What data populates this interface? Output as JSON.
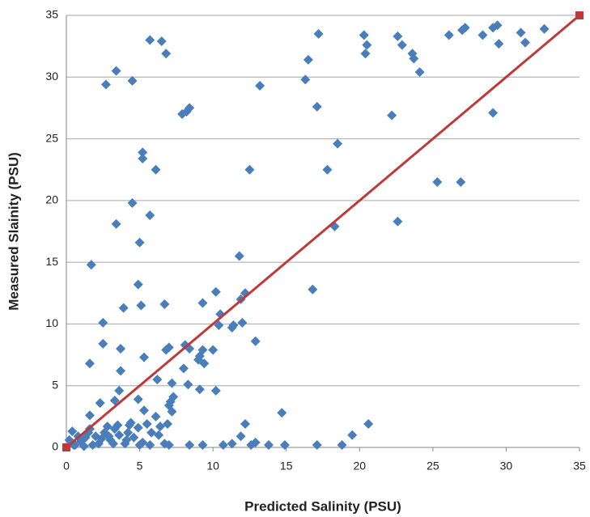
{
  "chart_data": {
    "type": "scatter",
    "xlabel": "Predicted Salinity (PSU)",
    "ylabel": "Measured Slainity (PSU)",
    "xlim": [
      0,
      35
    ],
    "ylim": [
      0,
      35
    ],
    "xticks": [
      0,
      5,
      10,
      15,
      20,
      25,
      30,
      35
    ],
    "yticks": [
      0,
      5,
      10,
      15,
      20,
      25,
      30,
      35
    ],
    "grid": "y",
    "series": [
      {
        "color": "#4a7ebb",
        "marker": "diamond",
        "x": [
          2.7,
          3.4,
          4.5,
          5.7,
          6.5,
          6.8,
          7.9,
          8.2,
          8.4,
          13.2,
          16.3,
          16.5,
          17.2,
          17.1,
          20.3,
          20.4,
          20.5,
          22.6,
          22.9,
          23.6,
          23.7,
          24.1,
          22.2,
          26.1,
          27.0,
          27.2,
          28.4,
          29.1,
          29.4,
          29.5,
          31.0,
          31.3,
          32.6,
          29.1,
          25.3,
          26.9,
          22.6,
          18.5,
          17.8,
          18.3,
          16.8,
          12.5,
          6.1,
          5.2,
          5.2,
          4.5,
          5.7,
          3.4,
          5.0,
          1.7,
          11.8,
          12.2,
          11.9,
          10.2,
          10.5,
          9.3,
          6.7,
          5.1,
          3.9,
          4.9,
          2.5,
          2.5,
          3.7,
          3.7,
          1.6,
          5.3,
          6.8,
          7.0,
          8.1,
          8.4,
          9.1,
          9.3,
          9.0,
          9.4,
          10.0,
          10.4,
          11.3,
          11.4,
          12.0,
          12.9,
          6.2,
          7.2,
          8.3,
          8.0,
          9.1,
          10.2,
          3.6,
          3.3,
          2.3,
          4.9,
          5.3,
          7.1,
          7.3,
          7.0,
          1.6,
          14.7,
          12.2,
          20.6,
          19.5,
          11.9,
          11.3,
          10.7,
          12.6,
          12.9,
          13.8,
          14.9,
          17.1,
          18.8,
          9.3,
          8.4,
          7.0,
          6.7,
          0.4,
          0.2,
          0.5,
          1.0,
          1.3,
          1.6,
          2.0,
          2.2,
          2.6,
          3.0,
          3.3,
          3.6,
          4.0,
          4.3,
          4.6,
          4.9,
          5.2,
          5.5,
          5.8,
          6.1,
          6.4,
          6.9,
          7.2,
          5.7,
          4.2,
          3.2,
          2.8,
          1.8,
          0.8,
          1.5,
          2.4,
          3.5,
          4.4,
          5.0,
          6.3,
          1.2,
          2.9,
          4.1,
          0.6
        ],
        "y": [
          29.4,
          30.5,
          29.7,
          33.0,
          32.9,
          31.9,
          27.0,
          27.2,
          27.5,
          29.3,
          29.8,
          31.4,
          33.5,
          27.6,
          33.4,
          31.9,
          32.6,
          33.3,
          32.6,
          31.9,
          31.5,
          30.4,
          26.9,
          33.4,
          33.8,
          34.0,
          33.4,
          34.0,
          34.2,
          32.7,
          33.6,
          32.8,
          33.9,
          27.1,
          21.5,
          21.5,
          18.3,
          24.6,
          22.5,
          17.9,
          12.8,
          22.5,
          22.5,
          23.9,
          23.4,
          19.8,
          18.8,
          18.1,
          16.6,
          14.8,
          15.5,
          12.5,
          12.0,
          12.6,
          10.8,
          11.7,
          11.6,
          11.5,
          11.3,
          13.2,
          10.1,
          8.4,
          8.0,
          6.2,
          6.8,
          7.3,
          7.9,
          8.1,
          8.3,
          8.0,
          7.4,
          7.9,
          7.1,
          6.8,
          7.9,
          9.9,
          9.7,
          9.9,
          10.1,
          8.6,
          5.5,
          5.2,
          5.1,
          6.4,
          4.7,
          4.6,
          4.6,
          3.8,
          3.6,
          3.9,
          3.0,
          3.7,
          4.1,
          3.4,
          2.6,
          2.8,
          1.9,
          1.9,
          1.0,
          0.9,
          0.3,
          0.2,
          0.2,
          0.4,
          0.2,
          0.2,
          0.2,
          0.2,
          0.2,
          0.2,
          0.2,
          0.3,
          1.3,
          0.6,
          0.2,
          0.5,
          0.8,
          1.5,
          0.9,
          0.3,
          1.2,
          0.6,
          1.5,
          1.0,
          0.3,
          1.8,
          0.8,
          1.6,
          0.4,
          1.9,
          1.2,
          2.5,
          1.7,
          1.9,
          2.9,
          0.2,
          1.2,
          0.3,
          1.7,
          0.2,
          0.9,
          1.2,
          0.7,
          1.8,
          2.0,
          0.2,
          1.0,
          0.1,
          0.9,
          0.6,
          0.2
        ]
      },
      {
        "color": "#be3a3a",
        "marker": "square",
        "line": true,
        "x": [
          0,
          35
        ],
        "y": [
          0,
          35
        ]
      }
    ]
  }
}
